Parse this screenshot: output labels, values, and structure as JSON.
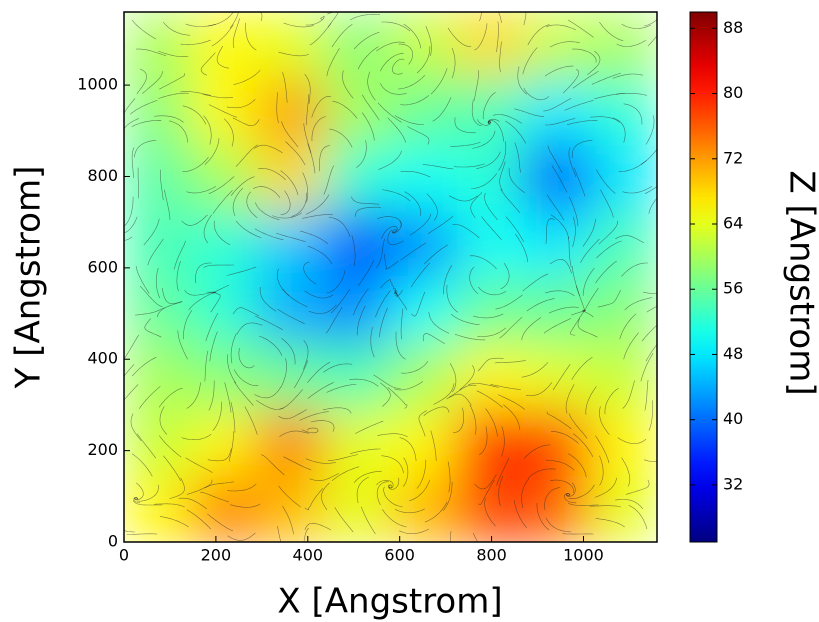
{
  "chart_data": {
    "type": "heatmap",
    "xlabel": "X [Angstrom]",
    "ylabel": "Y [Angstrom]",
    "colorbar_label": "Z [Angstrom]",
    "colormap": "jet",
    "x": [
      72,
      217,
      362,
      507,
      652,
      797,
      942,
      1087
    ],
    "y": [
      1087,
      942,
      797,
      652,
      507,
      362,
      217,
      72
    ],
    "z": [
      [
        60,
        66,
        64,
        58,
        62,
        68,
        62,
        60
      ],
      [
        58,
        66,
        72,
        60,
        56,
        54,
        48,
        52
      ],
      [
        55,
        60,
        68,
        52,
        50,
        52,
        38,
        48
      ],
      [
        54,
        52,
        46,
        38,
        42,
        50,
        48,
        54
      ],
      [
        56,
        52,
        44,
        42,
        50,
        56,
        56,
        58
      ],
      [
        60,
        58,
        56,
        54,
        60,
        66,
        64,
        62
      ],
      [
        62,
        66,
        74,
        64,
        66,
        80,
        78,
        66
      ],
      [
        66,
        74,
        70,
        64,
        70,
        78,
        76,
        64
      ]
    ],
    "xlim": [
      0,
      1160
    ],
    "ylim": [
      0,
      1160
    ],
    "xticks": [
      0,
      200,
      400,
      600,
      800,
      1000
    ],
    "yticks": [
      0,
      200,
      400,
      600,
      800,
      1000
    ],
    "zlim": [
      25,
      90
    ],
    "zticks": [
      32,
      40,
      48,
      56,
      64,
      72,
      80,
      88
    ]
  }
}
